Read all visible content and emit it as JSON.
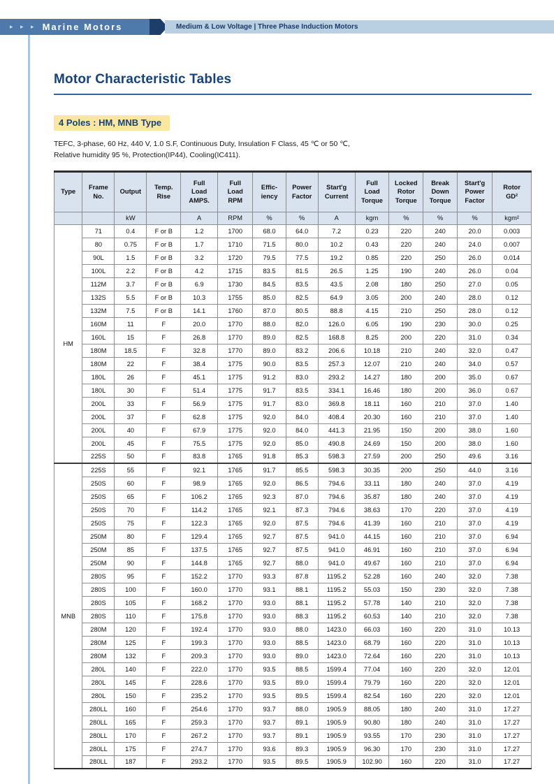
{
  "header": {
    "arrow_icons": "▸ ▸ ▸",
    "brand": "Marine Motors",
    "subtitle": "Medium & Low Voltage  |  Three Phase Induction Motors"
  },
  "page": {
    "title": "Motor Characteristic Tables",
    "section_heading": "4 Poles : HM, MNB Type",
    "description_line1": "TEFC, 3-phase, 60 Hz, 440 V, 1.0 S.F, Continuous Duty, Insulation F Class, 45 ℃ or 50 ℃,",
    "description_line2": "Relative humidity 95 %, Protection(IP44), Cooling(IC411)."
  },
  "colors": {
    "brand_bar": "#4d7aab",
    "chevron": "#1d3e6b",
    "sub_strip": "#b9cfe2",
    "title_blue": "#16427e",
    "highlight_yellow": "#fbe79f",
    "table_header_bg": "#d9e2ef"
  },
  "table": {
    "headers": [
      "Type",
      "Frame\nNo.",
      "Output",
      "Temp.\nRise",
      "Full\nLoad\nAMPS.",
      "Full\nLoad\nRPM",
      "Effic-\niency",
      "Power\nFactor",
      "Start'g\nCurrent",
      "Full\nLoad\nTorque",
      "Locked\nRotor\nTorque",
      "Break\nDown\nTorque",
      "Start'g\nPower\nFactor",
      "Rotor\nGD²"
    ],
    "units": [
      "",
      "",
      "kW",
      "",
      "A",
      "RPM",
      "%",
      "%",
      "A",
      "kgm",
      "%",
      "%",
      "%",
      "kgm²"
    ],
    "groups": [
      {
        "type": "HM",
        "rows": [
          [
            "71",
            "0.4",
            "F or B",
            "1.2",
            "1700",
            "68.0",
            "64.0",
            "7.2",
            "0.23",
            "220",
            "240",
            "20.0",
            "0.003"
          ],
          [
            "80",
            "0.75",
            "F or B",
            "1.7",
            "1710",
            "71.5",
            "80.0",
            "10.2",
            "0.43",
            "220",
            "240",
            "24.0",
            "0.007"
          ],
          [
            "90L",
            "1.5",
            "F or B",
            "3.2",
            "1720",
            "79.5",
            "77.5",
            "19.2",
            "0.85",
            "220",
            "250",
            "26.0",
            "0.014"
          ],
          [
            "100L",
            "2.2",
            "F or B",
            "4.2",
            "1715",
            "83.5",
            "81.5",
            "26.5",
            "1.25",
            "190",
            "240",
            "26.0",
            "0.04"
          ],
          [
            "112M",
            "3.7",
            "F or B",
            "6.9",
            "1730",
            "84.5",
            "83.5",
            "43.5",
            "2.08",
            "180",
            "250",
            "27.0",
            "0.05"
          ],
          [
            "132S",
            "5.5",
            "F or B",
            "10.3",
            "1755",
            "85.0",
            "82.5",
            "64.9",
            "3.05",
            "200",
            "240",
            "28.0",
            "0.12"
          ],
          [
            "132M",
            "7.5",
            "F or B",
            "14.1",
            "1760",
            "87.0",
            "80.5",
            "88.8",
            "4.15",
            "210",
            "250",
            "28.0",
            "0.12"
          ],
          [
            "160M",
            "11",
            "F",
            "20.0",
            "1770",
            "88.0",
            "82.0",
            "126.0",
            "6.05",
            "190",
            "230",
            "30.0",
            "0.25"
          ],
          [
            "160L",
            "15",
            "F",
            "26.8",
            "1770",
            "89.0",
            "82.5",
            "168.8",
            "8.25",
            "200",
            "220",
            "31.0",
            "0.34"
          ],
          [
            "180M",
            "18.5",
            "F",
            "32.8",
            "1770",
            "89.0",
            "83.2",
            "206.6",
            "10.18",
            "210",
            "240",
            "32.0",
            "0.47"
          ],
          [
            "180M",
            "22",
            "F",
            "38.4",
            "1775",
            "90.0",
            "83.5",
            "257.3",
            "12.07",
            "210",
            "240",
            "34.0",
            "0.57"
          ],
          [
            "180L",
            "26",
            "F",
            "45.1",
            "1775",
            "91.2",
            "83.0",
            "293.2",
            "14.27",
            "180",
            "200",
            "35.0",
            "0.67"
          ],
          [
            "180L",
            "30",
            "F",
            "51.4",
            "1775",
            "91.7",
            "83.5",
            "334.1",
            "16.46",
            "180",
            "200",
            "36.0",
            "0.67"
          ],
          [
            "200L",
            "33",
            "F",
            "56.9",
            "1775",
            "91.7",
            "83.0",
            "369.8",
            "18.11",
            "160",
            "210",
            "37.0",
            "1.40"
          ],
          [
            "200L",
            "37",
            "F",
            "62.8",
            "1775",
            "92.0",
            "84.0",
            "408.4",
            "20.30",
            "160",
            "210",
            "37.0",
            "1.40"
          ],
          [
            "200L",
            "40",
            "F",
            "67.9",
            "1775",
            "92.0",
            "84.0",
            "441.3",
            "21.95",
            "150",
            "200",
            "38.0",
            "1.60"
          ],
          [
            "200L",
            "45",
            "F",
            "75.5",
            "1775",
            "92.0",
            "85.0",
            "490.8",
            "24.69",
            "150",
            "200",
            "38.0",
            "1.60"
          ],
          [
            "225S",
            "50",
            "F",
            "83.8",
            "1765",
            "91.8",
            "85.3",
            "598.3",
            "27.59",
            "200",
            "250",
            "49.6",
            "3.16"
          ]
        ]
      },
      {
        "type": "MNB",
        "rows": [
          [
            "225S",
            "55",
            "F",
            "92.1",
            "1765",
            "91.7",
            "85.5",
            "598.3",
            "30.35",
            "200",
            "250",
            "44.0",
            "3.16"
          ],
          [
            "250S",
            "60",
            "F",
            "98.9",
            "1765",
            "92.0",
            "86.5",
            "794.6",
            "33.11",
            "180",
            "240",
            "37.0",
            "4.19"
          ],
          [
            "250S",
            "65",
            "F",
            "106.2",
            "1765",
            "92.3",
            "87.0",
            "794.6",
            "35.87",
            "180",
            "240",
            "37.0",
            "4.19"
          ],
          [
            "250S",
            "70",
            "F",
            "114.2",
            "1765",
            "92.1",
            "87.3",
            "794.6",
            "38.63",
            "170",
            "220",
            "37.0",
            "4.19"
          ],
          [
            "250S",
            "75",
            "F",
            "122.3",
            "1765",
            "92.0",
            "87.5",
            "794.6",
            "41.39",
            "160",
            "210",
            "37.0",
            "4.19"
          ],
          [
            "250M",
            "80",
            "F",
            "129.4",
            "1765",
            "92.7",
            "87.5",
            "941.0",
            "44.15",
            "160",
            "210",
            "37.0",
            "6.94"
          ],
          [
            "250M",
            "85",
            "F",
            "137.5",
            "1765",
            "92.7",
            "87.5",
            "941.0",
            "46.91",
            "160",
            "210",
            "37.0",
            "6.94"
          ],
          [
            "250M",
            "90",
            "F",
            "144.8",
            "1765",
            "92.7",
            "88.0",
            "941.0",
            "49.67",
            "160",
            "210",
            "37.0",
            "6.94"
          ],
          [
            "280S",
            "95",
            "F",
            "152.2",
            "1770",
            "93.3",
            "87.8",
            "1195.2",
            "52.28",
            "160",
            "240",
            "32.0",
            "7.38"
          ],
          [
            "280S",
            "100",
            "F",
            "160.0",
            "1770",
            "93.1",
            "88.1",
            "1195.2",
            "55.03",
            "150",
            "230",
            "32.0",
            "7.38"
          ],
          [
            "280S",
            "105",
            "F",
            "168.2",
            "1770",
            "93.0",
            "88.1",
            "1195.2",
            "57.78",
            "140",
            "210",
            "32.0",
            "7.38"
          ],
          [
            "280S",
            "110",
            "F",
            "175.8",
            "1770",
            "93.0",
            "88.3",
            "1195.2",
            "60.53",
            "140",
            "210",
            "32.0",
            "7.38"
          ],
          [
            "280M",
            "120",
            "F",
            "192.4",
            "1770",
            "93.0",
            "88.0",
            "1423.0",
            "66.03",
            "160",
            "220",
            "31.0",
            "10.13"
          ],
          [
            "280M",
            "125",
            "F",
            "199.3",
            "1770",
            "93.0",
            "88.5",
            "1423.0",
            "68.79",
            "160",
            "220",
            "31.0",
            "10.13"
          ],
          [
            "280M",
            "132",
            "F",
            "209.3",
            "1770",
            "93.0",
            "89.0",
            "1423.0",
            "72.64",
            "160",
            "220",
            "31.0",
            "10.13"
          ],
          [
            "280L",
            "140",
            "F",
            "222.0",
            "1770",
            "93.5",
            "88.5",
            "1599.4",
            "77.04",
            "160",
            "220",
            "32.0",
            "12.01"
          ],
          [
            "280L",
            "145",
            "F",
            "228.6",
            "1770",
            "93.5",
            "89.0",
            "1599.4",
            "79.79",
            "160",
            "220",
            "32.0",
            "12.01"
          ],
          [
            "280L",
            "150",
            "F",
            "235.2",
            "1770",
            "93.5",
            "89.5",
            "1599.4",
            "82.54",
            "160",
            "220",
            "32.0",
            "12.01"
          ],
          [
            "280LL",
            "160",
            "F",
            "254.6",
            "1770",
            "93.7",
            "88.0",
            "1905.9",
            "88.05",
            "180",
            "240",
            "31.0",
            "17.27"
          ],
          [
            "280LL",
            "165",
            "F",
            "259.3",
            "1770",
            "93.7",
            "89.1",
            "1905.9",
            "90.80",
            "180",
            "240",
            "31.0",
            "17.27"
          ],
          [
            "280LL",
            "170",
            "F",
            "267.2",
            "1770",
            "93.7",
            "89.1",
            "1905.9",
            "93.55",
            "170",
            "230",
            "31.0",
            "17.27"
          ],
          [
            "280LL",
            "175",
            "F",
            "274.7",
            "1770",
            "93.6",
            "89.3",
            "1905.9",
            "96.30",
            "170",
            "230",
            "31.0",
            "17.27"
          ],
          [
            "280LL",
            "187",
            "F",
            "293.2",
            "1770",
            "93.5",
            "89.5",
            "1905.9",
            "102.90",
            "160",
            "220",
            "31.0",
            "17.27"
          ]
        ]
      }
    ]
  }
}
